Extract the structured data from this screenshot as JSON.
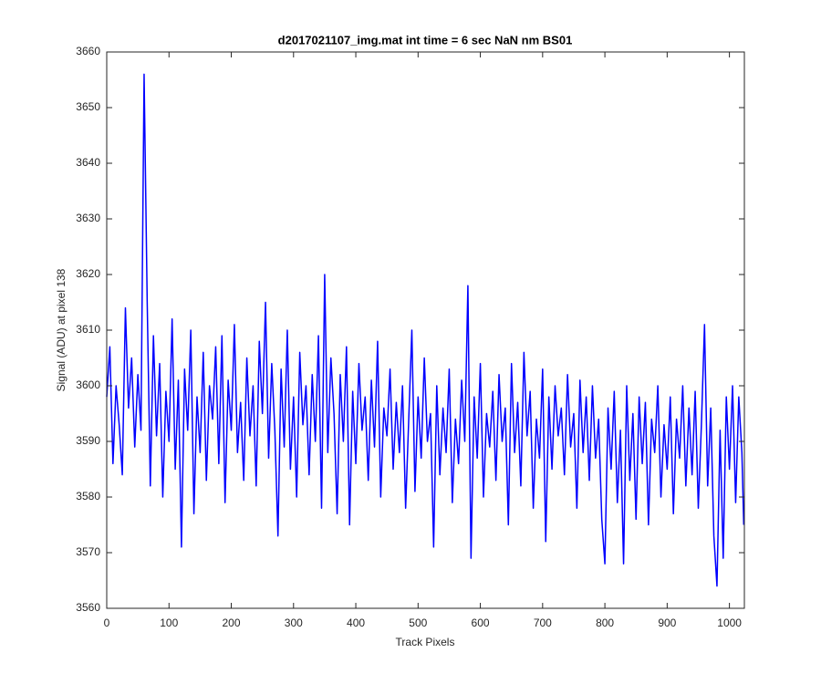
{
  "chart_data": {
    "type": "line",
    "title": "d2017021107_img.mat int time = 6 sec  NaN nm BS01",
    "x_label": "Track Pixels",
    "y_label": "Signal (ADU) at pixel 138",
    "color": "#0000ff",
    "xlim": [
      0,
      1024
    ],
    "xticks": [
      0,
      100,
      200,
      300,
      400,
      500,
      600,
      700,
      800,
      900,
      1000
    ],
    "ylim": [
      3560,
      3660
    ],
    "yticks": [
      3560,
      3570,
      3580,
      3590,
      3600,
      3610,
      3620,
      3630,
      3640,
      3650,
      3660
    ],
    "grid": false,
    "x": [
      0,
      5,
      10,
      15,
      20,
      25,
      30,
      35,
      40,
      45,
      50,
      55,
      60,
      65,
      70,
      75,
      80,
      85,
      90,
      95,
      100,
      105,
      110,
      115,
      120,
      125,
      130,
      135,
      140,
      145,
      150,
      155,
      160,
      165,
      170,
      175,
      180,
      185,
      190,
      195,
      200,
      205,
      210,
      215,
      220,
      225,
      230,
      235,
      240,
      245,
      250,
      255,
      260,
      265,
      270,
      275,
      280,
      285,
      290,
      295,
      300,
      305,
      310,
      315,
      320,
      325,
      330,
      335,
      340,
      345,
      350,
      355,
      360,
      365,
      370,
      375,
      380,
      385,
      390,
      395,
      400,
      405,
      410,
      415,
      420,
      425,
      430,
      435,
      440,
      445,
      450,
      455,
      460,
      465,
      470,
      475,
      480,
      485,
      490,
      495,
      500,
      505,
      510,
      515,
      520,
      525,
      530,
      535,
      540,
      545,
      550,
      555,
      560,
      565,
      570,
      575,
      580,
      585,
      590,
      595,
      600,
      605,
      610,
      615,
      620,
      625,
      630,
      635,
      640,
      645,
      650,
      655,
      660,
      665,
      670,
      675,
      680,
      685,
      690,
      695,
      700,
      705,
      710,
      715,
      720,
      725,
      730,
      735,
      740,
      745,
      750,
      755,
      760,
      765,
      770,
      775,
      780,
      785,
      790,
      795,
      800,
      805,
      810,
      815,
      820,
      825,
      830,
      835,
      840,
      845,
      850,
      855,
      860,
      865,
      870,
      875,
      880,
      885,
      890,
      895,
      900,
      905,
      910,
      915,
      920,
      925,
      930,
      935,
      940,
      945,
      950,
      955,
      960,
      965,
      970,
      975,
      980,
      985,
      990,
      995,
      1000,
      1005,
      1010,
      1015,
      1020,
      1023
    ],
    "values": [
      3598,
      3607,
      3586,
      3600,
      3593,
      3584,
      3614,
      3596,
      3605,
      3589,
      3602,
      3592,
      3656,
      3615,
      3582,
      3609,
      3591,
      3604,
      3580,
      3599,
      3590,
      3612,
      3585,
      3601,
      3571,
      3603,
      3592,
      3610,
      3577,
      3598,
      3588,
      3606,
      3583,
      3600,
      3594,
      3607,
      3586,
      3609,
      3579,
      3601,
      3592,
      3611,
      3588,
      3597,
      3583,
      3605,
      3591,
      3600,
      3582,
      3608,
      3595,
      3615,
      3587,
      3604,
      3592,
      3573,
      3603,
      3589,
      3610,
      3585,
      3598,
      3580,
      3606,
      3593,
      3600,
      3584,
      3602,
      3590,
      3609,
      3578,
      3620,
      3588,
      3605,
      3595,
      3577,
      3602,
      3590,
      3607,
      3575,
      3599,
      3586,
      3604,
      3592,
      3598,
      3583,
      3601,
      3589,
      3608,
      3580,
      3596,
      3591,
      3603,
      3585,
      3597,
      3588,
      3600,
      3578,
      3594,
      3610,
      3581,
      3598,
      3587,
      3605,
      3590,
      3595,
      3571,
      3600,
      3584,
      3596,
      3588,
      3603,
      3579,
      3594,
      3586,
      3601,
      3590,
      3618,
      3569,
      3598,
      3587,
      3604,
      3580,
      3595,
      3589,
      3599,
      3583,
      3602,
      3590,
      3596,
      3575,
      3604,
      3588,
      3597,
      3582,
      3606,
      3591,
      3599,
      3578,
      3594,
      3587,
      3603,
      3572,
      3598,
      3585,
      3600,
      3591,
      3596,
      3584,
      3602,
      3589,
      3595,
      3578,
      3601,
      3588,
      3598,
      3583,
      3600,
      3587,
      3594,
      3576,
      3568,
      3596,
      3585,
      3599,
      3579,
      3592,
      3568,
      3600,
      3583,
      3595,
      3576,
      3598,
      3586,
      3597,
      3575,
      3594,
      3588,
      3600,
      3580,
      3593,
      3585,
      3598,
      3577,
      3594,
      3587,
      3600,
      3582,
      3596,
      3584,
      3599,
      3578,
      3593,
      3611,
      3582,
      3596,
      3573,
      3564,
      3592,
      3569,
      3598,
      3585,
      3600,
      3579,
      3598,
      3588,
      3575
    ]
  }
}
